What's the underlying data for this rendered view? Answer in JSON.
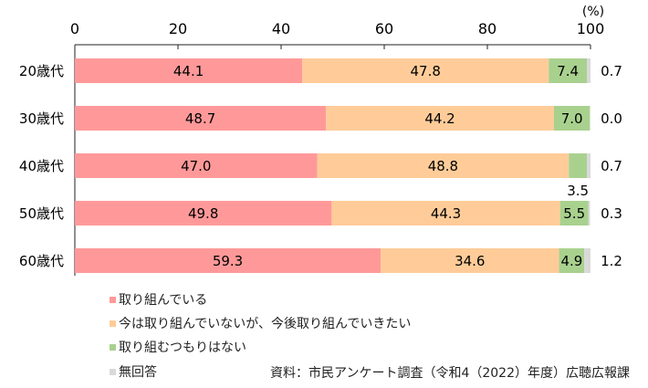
{
  "chart_data": {
    "type": "bar",
    "orientation": "horizontal",
    "stacked": true,
    "unit_label": "(%)",
    "xlim": [
      0,
      100
    ],
    "xticks": [
      0,
      20,
      40,
      60,
      80,
      100
    ],
    "categories": [
      "20歳代",
      "30歳代",
      "40歳代",
      "50歳代",
      "60歳代"
    ],
    "series": [
      {
        "name": "取り組んでいる",
        "color": "#ff9999",
        "values": [
          44.1,
          48.7,
          47.0,
          49.8,
          59.3
        ]
      },
      {
        "name": "今は取り組んでいないが、今後取り組んでいきたい",
        "color": "#ffcc99",
        "values": [
          47.8,
          44.2,
          48.8,
          44.3,
          34.6
        ]
      },
      {
        "name": "取り組むつもりはない",
        "color": "#a9d18e",
        "values": [
          7.4,
          7.0,
          3.5,
          5.5,
          4.9
        ]
      },
      {
        "name": "無回答",
        "color": "#d9d9d9",
        "values": [
          0.7,
          0.0,
          0.7,
          0.3,
          1.2
        ]
      }
    ],
    "data_labels": [
      [
        "44.1",
        "47.8",
        "7.4",
        "0.7"
      ],
      [
        "48.7",
        "44.2",
        "7.0",
        "0.0"
      ],
      [
        "47.0",
        "48.8",
        "3.5",
        "0.7"
      ],
      [
        "49.8",
        "44.3",
        "5.5",
        "0.3"
      ],
      [
        "59.3",
        "34.6",
        "4.9",
        "1.2"
      ]
    ],
    "legend_placement": "bottom-left",
    "grid": false
  },
  "source": "資料：市民アンケート調査（令和4（2022）年度）広聴広報課"
}
